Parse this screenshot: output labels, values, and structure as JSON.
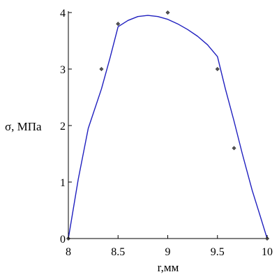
{
  "chart_data": {
    "type": "line",
    "title": "",
    "xlabel": "r,мм",
    "ylabel": "σ, МПа",
    "xlim": [
      8,
      10
    ],
    "ylim": [
      0,
      4
    ],
    "grid": false,
    "x_ticks": [
      8,
      8.5,
      9,
      9.5,
      10
    ],
    "x_tick_labels": [
      "8",
      "8.5",
      "9",
      "9.5",
      "10"
    ],
    "y_ticks": [
      0,
      1,
      2,
      3,
      4
    ],
    "y_tick_labels": [
      "0",
      "1",
      "2",
      "3",
      "4"
    ],
    "series": [
      {
        "kind": "points",
        "color": "#555555",
        "x": [
          8,
          8.333,
          8.5,
          9,
          9.5,
          9.667,
          10
        ],
        "y": [
          0,
          3.0,
          3.8,
          4.0,
          3.0,
          1.6,
          0
        ]
      },
      {
        "kind": "curve",
        "color": "#1f1fbf",
        "x": [
          8,
          8.1,
          8.2,
          8.333,
          8.42,
          8.5,
          8.6,
          8.7,
          8.8,
          8.9,
          9.0,
          9.1,
          9.2,
          9.3,
          9.4,
          9.5,
          9.58,
          9.667,
          9.75,
          9.85,
          9.93,
          10
        ],
        "y": [
          0,
          1.05,
          1.95,
          2.65,
          3.2,
          3.75,
          3.86,
          3.93,
          3.95,
          3.93,
          3.88,
          3.8,
          3.7,
          3.58,
          3.43,
          3.22,
          2.65,
          2.08,
          1.5,
          0.85,
          0.4,
          0
        ]
      }
    ]
  }
}
